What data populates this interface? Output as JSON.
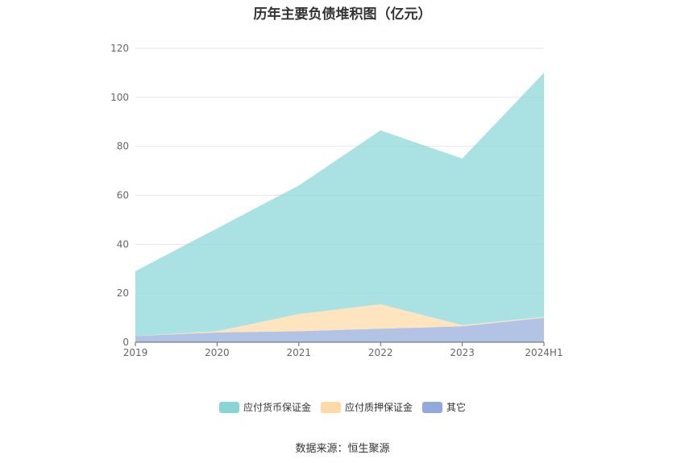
{
  "title": "历年主要负债堆积图（亿元）",
  "source": "数据来源：恒生聚源",
  "chart_data": {
    "type": "area",
    "stacked": true,
    "categories": [
      "2019",
      "2020",
      "2021",
      "2022",
      "2023",
      "2024H1"
    ],
    "ylim": [
      0,
      120
    ],
    "yticks": [
      0,
      20,
      40,
      60,
      80,
      100,
      120
    ],
    "grid": true,
    "legend_position": "bottom-center",
    "series": [
      {
        "name": "其它",
        "color": "#91a9dc",
        "values": [
          2.5,
          4.0,
          4.5,
          5.5,
          6.5,
          10.0
        ]
      },
      {
        "name": "应付质押保证金",
        "color": "#fddaa5",
        "values": [
          0.0,
          0.5,
          7.0,
          10.0,
          0.5,
          0.3
        ]
      },
      {
        "name": "应付货币保证金",
        "color": "#86d6d8",
        "values": [
          26.5,
          42.0,
          52.5,
          71.0,
          68.0,
          99.7
        ]
      }
    ],
    "legend_order": [
      "应付货币保证金",
      "应付质押保证金",
      "其它"
    ]
  }
}
